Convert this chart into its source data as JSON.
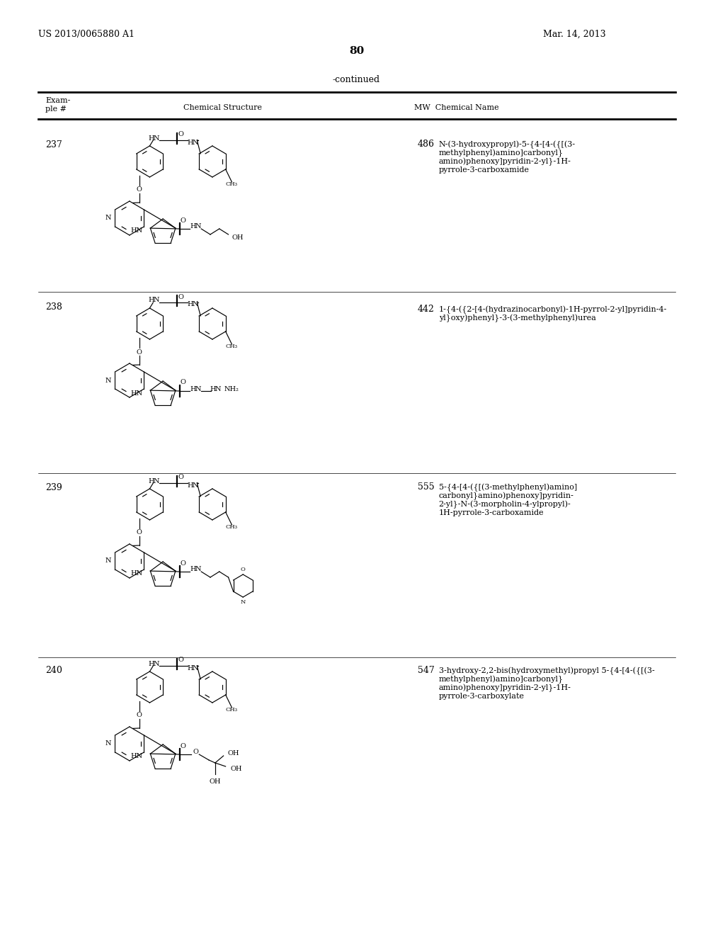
{
  "page_header_left": "US 2013/0065880 A1",
  "page_header_right": "Mar. 14, 2013",
  "page_number": "80",
  "continued_label": "-continued",
  "bg_color": "#ffffff",
  "text_color": "#000000",
  "col_header_example": "Exam-\nple #",
  "col_header_structure": "Chemical Structure",
  "col_header_mwname": "MW  Chemical Name",
  "examples": [
    {
      "number": "237",
      "mw": "486",
      "name_lines": [
        "N-(3-hydroxypropyl)-5-{4-[4-({[(3-",
        "methylphenyl)amino]carbonyl}",
        "amino)phenoxy]pyridin-2-yl}-1H-",
        "pyrrole-3-carboxamide"
      ]
    },
    {
      "number": "238",
      "mw": "442",
      "name_lines": [
        "1-{4-({2-[4-(hydrazinocarbonyl)-1H-pyrrol-2-yl]pyridin-4-",
        "yl}oxy)phenyl}-3-(3-methylphenyl)urea"
      ]
    },
    {
      "number": "239",
      "mw": "555",
      "name_lines": [
        "5-{4-[4-({[(3-methylphenyl)amino]",
        "carbonyl}amino)phenoxy]pyridin-",
        "2-yl}-N-(3-morpholin-4-ylpropyl)-",
        "1H-pyrrole-3-carboxamide"
      ]
    },
    {
      "number": "240",
      "mw": "547",
      "name_lines": [
        "3-hydroxy-2,2-bis(hydroxymethyl)propyl 5-{4-[4-({[(3-",
        "methylphenyl)amino]carbonyl}",
        "amino)phenoxy]pyridin-2-yl}-1H-",
        "pyrrole-3-carboxylate"
      ]
    }
  ]
}
